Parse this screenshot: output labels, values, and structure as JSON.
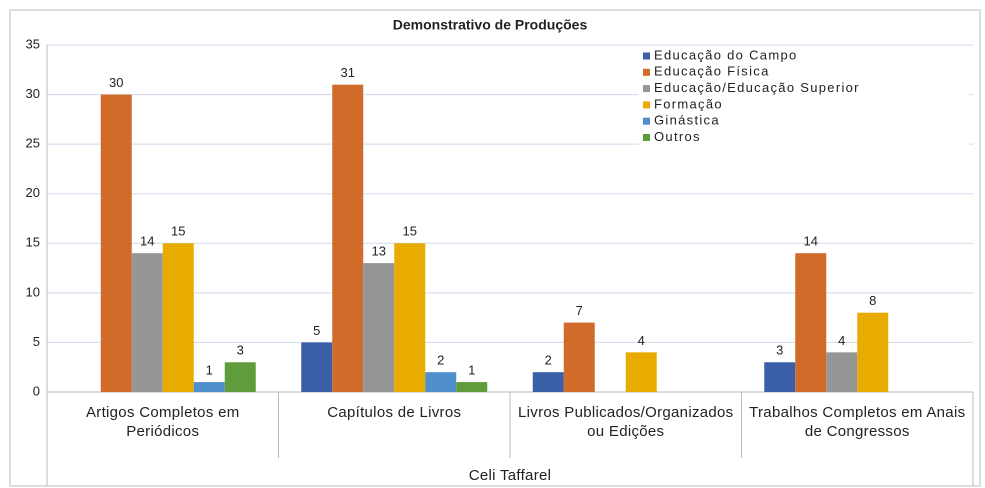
{
  "chart_data": {
    "type": "bar",
    "title": "Demonstrativo de Produções",
    "categories": [
      "Artigos Completos em Periódicos",
      "Capítulos de Livros",
      "Livros Publicados/Organizados ou Edições",
      "Trabalhos Completos em Anais de Congressos"
    ],
    "group_label": "Celi Taffarel",
    "series": [
      {
        "name": "Educação do Campo",
        "color": "#3a5ea8",
        "values": [
          null,
          5,
          2,
          3
        ]
      },
      {
        "name": "Educação Física",
        "color": "#d06b2a",
        "values": [
          30,
          31,
          7,
          14
        ]
      },
      {
        "name": "Educação/Educação Superior",
        "color": "#969696",
        "values": [
          14,
          13,
          null,
          4
        ]
      },
      {
        "name": "Formação",
        "color": "#e8ac00",
        "values": [
          15,
          15,
          4,
          8
        ]
      },
      {
        "name": "Ginástica",
        "color": "#4f8fcc",
        "values": [
          1,
          2,
          null,
          null
        ]
      },
      {
        "name": "Outros",
        "color": "#5f9c3b",
        "values": [
          3,
          1,
          null,
          null
        ]
      }
    ],
    "ylim": [
      0,
      35
    ],
    "yticks": [
      0,
      5,
      10,
      15,
      20,
      25,
      30,
      35
    ],
    "grid": true,
    "legend": "top-right"
  }
}
